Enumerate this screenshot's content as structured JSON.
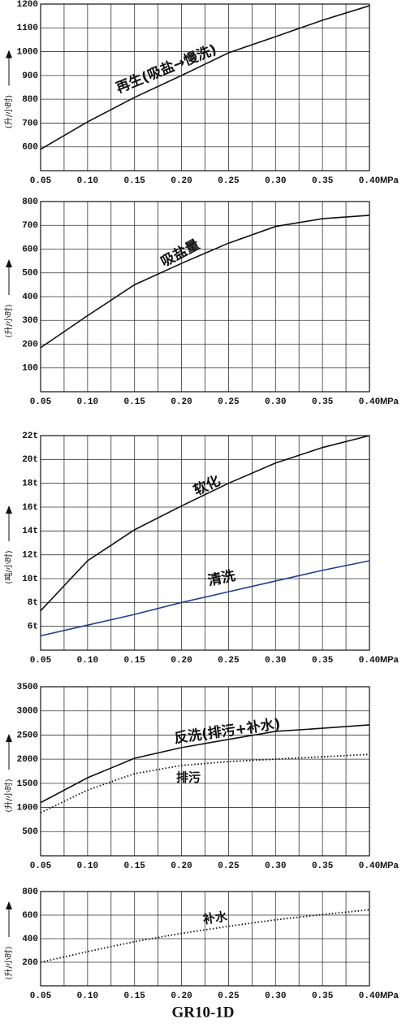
{
  "chart_data": [
    {
      "type": "line",
      "ylabel": "(升/小时)",
      "xlabel": "MPa",
      "x": [
        0.05,
        0.1,
        0.15,
        0.2,
        0.25,
        0.3,
        0.35,
        0.4
      ],
      "xlim": [
        0.05,
        0.4
      ],
      "xticks": [
        {
          "value": 0.05,
          "label": "0.05"
        },
        {
          "value": 0.1,
          "label": "0.10"
        },
        {
          "value": 0.15,
          "label": "0.15"
        },
        {
          "value": 0.2,
          "label": "0.20"
        },
        {
          "value": 0.25,
          "label": "0.25"
        },
        {
          "value": 0.3,
          "label": "0.30"
        },
        {
          "value": 0.35,
          "label": "0.35"
        },
        {
          "value": 0.4,
          "label": "0.40"
        }
      ],
      "ylim": [
        500,
        1200
      ],
      "yticks": [
        600,
        700,
        800,
        900,
        1000,
        1100,
        1200
      ],
      "grid": true,
      "series": [
        {
          "name": "再生(吸盐→慢洗)",
          "color": "#111111",
          "values": [
            590,
            705,
            808,
            900,
            995,
            1063,
            1132,
            1193
          ]
        }
      ]
    },
    {
      "type": "line",
      "ylabel": "(升/小时)",
      "xlabel": "MPa",
      "x": [
        0.05,
        0.1,
        0.15,
        0.2,
        0.25,
        0.3,
        0.35,
        0.4
      ],
      "xlim": [
        0.05,
        0.4
      ],
      "xticks": [
        {
          "value": 0.05,
          "label": "0.05"
        },
        {
          "value": 0.1,
          "label": "0.10"
        },
        {
          "value": 0.15,
          "label": "0.15"
        },
        {
          "value": 0.2,
          "label": "0.20"
        },
        {
          "value": 0.25,
          "label": "0.25"
        },
        {
          "value": 0.3,
          "label": "0.30"
        },
        {
          "value": 0.35,
          "label": "0.35"
        },
        {
          "value": 0.4,
          "label": "0.40"
        }
      ],
      "ylim": [
        0,
        800
      ],
      "yticks": [
        100,
        200,
        300,
        400,
        500,
        600,
        700,
        800
      ],
      "grid": true,
      "series": [
        {
          "name": "吸盐量",
          "color": "#111111",
          "values": [
            185,
            320,
            450,
            540,
            625,
            695,
            728,
            742
          ]
        }
      ]
    },
    {
      "type": "line",
      "ylabel": "(吨/小时)",
      "xlabel": "MPa",
      "x": [
        0.05,
        0.1,
        0.15,
        0.2,
        0.25,
        0.3,
        0.35,
        0.4
      ],
      "xlim": [
        0.05,
        0.4
      ],
      "xticks": [
        {
          "value": 0.05,
          "label": "0.05"
        },
        {
          "value": 0.1,
          "label": "0.10"
        },
        {
          "value": 0.15,
          "label": "0.15"
        },
        {
          "value": 0.2,
          "label": "0.20"
        },
        {
          "value": 0.25,
          "label": "0.25"
        },
        {
          "value": 0.3,
          "label": "0.30"
        },
        {
          "value": 0.35,
          "label": "0.35"
        },
        {
          "value": 0.4,
          "label": "0.40"
        }
      ],
      "ylim": [
        4,
        22
      ],
      "yticks": [
        {
          "value": 6,
          "label": "6t"
        },
        {
          "value": 8,
          "label": "8t"
        },
        {
          "value": 10,
          "label": "10t"
        },
        {
          "value": 12,
          "label": "12t"
        },
        {
          "value": 14,
          "label": "14t"
        },
        {
          "value": 16,
          "label": "16t"
        },
        {
          "value": 18,
          "label": "18t"
        },
        {
          "value": 20,
          "label": "20t"
        },
        {
          "value": 22,
          "label": "22t"
        }
      ],
      "grid": true,
      "series": [
        {
          "name": "软化",
          "color": "#111111",
          "values": [
            7.3,
            11.5,
            14.1,
            16.1,
            18.0,
            19.7,
            21.0,
            22.0
          ]
        },
        {
          "name": "清洗",
          "color": "#1f3f8f",
          "values": [
            5.2,
            6.1,
            7.0,
            8.0,
            8.9,
            9.8,
            10.7,
            11.5
          ]
        }
      ]
    },
    {
      "type": "line",
      "ylabel": "(升/小时)",
      "xlabel": "MPa",
      "x": [
        0.05,
        0.1,
        0.15,
        0.2,
        0.25,
        0.3,
        0.35,
        0.4
      ],
      "xlim": [
        0.05,
        0.4
      ],
      "xticks": [
        {
          "value": 0.05,
          "label": "0.05"
        },
        {
          "value": 0.1,
          "label": "0.10"
        },
        {
          "value": 0.15,
          "label": "0.15"
        },
        {
          "value": 0.2,
          "label": "0.20"
        },
        {
          "value": 0.25,
          "label": "0.25"
        },
        {
          "value": 0.3,
          "label": "0.30"
        },
        {
          "value": 0.35,
          "label": "0.35"
        },
        {
          "value": 0.4,
          "label": "0.40"
        }
      ],
      "ylim": [
        0,
        3500
      ],
      "yticks": [
        500,
        1000,
        1500,
        2000,
        2500,
        3000,
        3500
      ],
      "grid": true,
      "series": [
        {
          "name": "反洗(排污+补水)",
          "color": "#111111",
          "values": [
            1100,
            1615,
            2020,
            2240,
            2410,
            2575,
            2640,
            2710
          ]
        },
        {
          "name": "排污",
          "color": "#111111",
          "dotted": true,
          "values": [
            890,
            1360,
            1700,
            1870,
            1950,
            2000,
            2050,
            2100
          ]
        }
      ]
    },
    {
      "type": "line",
      "ylabel": "(升/小时)",
      "xlabel": "MPa",
      "x": [
        0.05,
        0.1,
        0.15,
        0.2,
        0.25,
        0.3,
        0.35,
        0.4
      ],
      "xlim": [
        0.05,
        0.4
      ],
      "xticks": [
        {
          "value": 0.05,
          "label": "0.05"
        },
        {
          "value": 0.1,
          "label": "0.10"
        },
        {
          "value": 0.15,
          "label": "0.15"
        },
        {
          "value": 0.2,
          "label": "0.20"
        },
        {
          "value": 0.25,
          "label": "0.25"
        },
        {
          "value": 0.3,
          "label": "0.30"
        },
        {
          "value": 0.35,
          "label": "0.35"
        },
        {
          "value": 0.4,
          "label": "0.40"
        }
      ],
      "ylim": [
        0,
        800
      ],
      "yticks": [
        200,
        400,
        600,
        800
      ],
      "grid": true,
      "series": [
        {
          "name": "补水",
          "color": "#111111",
          "dotted": true,
          "values": [
            200,
            290,
            375,
            445,
            505,
            560,
            605,
            645
          ]
        }
      ]
    }
  ],
  "footer": "GR10-1D"
}
